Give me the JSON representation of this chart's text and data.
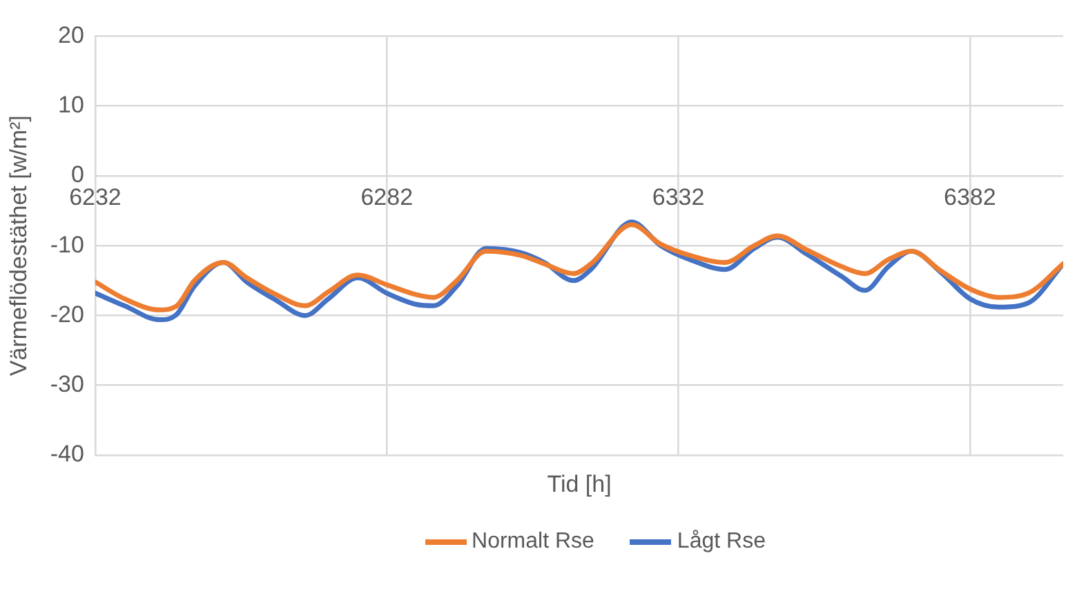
{
  "chart_data": {
    "type": "line",
    "xlabel": "Tid [h]",
    "ylabel": "Värmeflödestäthet [w/m²]",
    "x": [
      6232,
      6237,
      6243,
      6246,
      6249,
      6254,
      6258,
      6263,
      6268,
      6272,
      6277,
      6282,
      6287,
      6290,
      6294,
      6299,
      6305,
      6309,
      6314,
      6317,
      6324,
      6329,
      6334,
      6340,
      6345,
      6349,
      6354,
      6360,
      6364,
      6368,
      6372,
      6377,
      6382,
      6387,
      6392,
      6398
    ],
    "series": [
      {
        "name": "Normalt Rse",
        "color": "#ed7d31",
        "values": [
          -15.2,
          -17.6,
          -19.2,
          -18.6,
          -15,
          -12.4,
          -14.6,
          -17,
          -18.6,
          -16.6,
          -14.2,
          -15.6,
          -17,
          -17.4,
          -15,
          -10.8,
          -11.4,
          -12.6,
          -14,
          -12.6,
          -7,
          -9.8,
          -11.4,
          -12.4,
          -10,
          -8.6,
          -10.6,
          -13,
          -14,
          -12,
          -10.8,
          -13.6,
          -16.2,
          -17.4,
          -16.8,
          -12.6
        ]
      },
      {
        "name": "Lågt Rse",
        "color": "#4472c4",
        "values": [
          -16.8,
          -18.6,
          -20.6,
          -19.8,
          -15.8,
          -12.4,
          -15.2,
          -17.8,
          -20,
          -17.6,
          -14.6,
          -16.8,
          -18.4,
          -18.6,
          -15.8,
          -10.4,
          -11,
          -12.4,
          -15,
          -13.4,
          -6.6,
          -10,
          -12,
          -13.4,
          -10.4,
          -8.8,
          -11.2,
          -14.4,
          -16.4,
          -13,
          -10.8,
          -13.8,
          -17.6,
          -18.8,
          -18.2,
          -12.6
        ]
      }
    ],
    "xlim": [
      6232,
      6398
    ],
    "xticks": [
      6232,
      6282,
      6332,
      6382
    ],
    "ylim": [
      -40,
      20
    ],
    "yticks": [
      -40,
      -30,
      -20,
      -10,
      0,
      10,
      20
    ],
    "grid": true,
    "legend": "bottom",
    "marker": "none",
    "line_style": "solid"
  }
}
